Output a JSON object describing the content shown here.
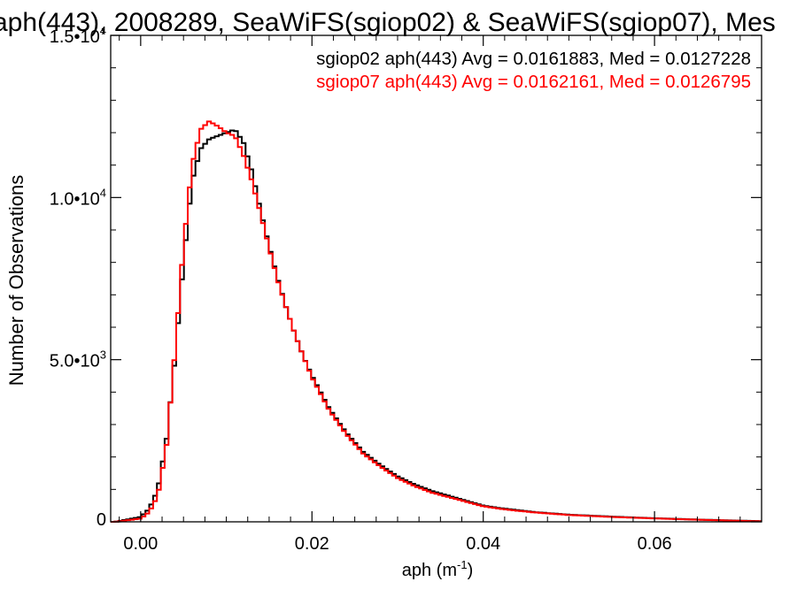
{
  "chart_data": {
    "type": "line",
    "title": "aph(443), 2008289, SeaWiFS(sgiop02) & SeaWiFS(sgiop07), Mes",
    "xlabel": "aph (m",
    "xlabel_sup": "-1",
    "xlabel_end": ")",
    "ylabel": "Number of Observations",
    "xlim": [
      -0.0035,
      0.0725
    ],
    "ylim": [
      0,
      15000
    ],
    "grid": false,
    "legend_position": "top-right",
    "x_ticks": [
      {
        "value": 0.0,
        "label": "0.00"
      },
      {
        "value": 0.02,
        "label": "0.02"
      },
      {
        "value": 0.04,
        "label": "0.04"
      },
      {
        "value": 0.06,
        "label": "0.06"
      }
    ],
    "y_ticks": [
      {
        "value": 0,
        "base": "0",
        "exp": ""
      },
      {
        "value": 5000,
        "base": "5.0•10",
        "exp": "3"
      },
      {
        "value": 10000,
        "base": "1.0•10",
        "exp": "4"
      },
      {
        "value": 15000,
        "base": "1.5•10",
        "exp": "4"
      }
    ],
    "series": [
      {
        "name": "sgiop02 aph(443) Avg = 0.0161883, Med = 0.0127228",
        "color": "#000000",
        "x": [
          -0.003,
          0.0,
          0.001,
          0.002,
          0.003,
          0.004,
          0.005,
          0.006,
          0.007,
          0.008,
          0.009,
          0.01,
          0.011,
          0.012,
          0.013,
          0.014,
          0.015,
          0.016,
          0.017,
          0.018,
          0.019,
          0.02,
          0.022,
          0.024,
          0.026,
          0.028,
          0.03,
          0.032,
          0.034,
          0.036,
          0.038,
          0.04,
          0.042,
          0.044,
          0.046,
          0.048,
          0.05,
          0.055,
          0.06,
          0.065,
          0.07,
          0.0725
        ],
        "y": [
          0,
          150,
          400,
          1000,
          2500,
          5000,
          8000,
          10500,
          11500,
          11800,
          11900,
          12000,
          12100,
          11700,
          10800,
          9600,
          8500,
          7500,
          6600,
          5800,
          5100,
          4500,
          3500,
          2750,
          2150,
          1750,
          1400,
          1150,
          950,
          800,
          650,
          500,
          420,
          360,
          300,
          260,
          220,
          160,
          110,
          70,
          35,
          20
        ]
      },
      {
        "name": "sgiop07 aph(443) Avg = 0.0162161, Med = 0.0126795",
        "color": "#ff0000",
        "x": [
          -0.003,
          0.0,
          0.001,
          0.002,
          0.003,
          0.004,
          0.005,
          0.006,
          0.007,
          0.008,
          0.009,
          0.01,
          0.011,
          0.012,
          0.013,
          0.014,
          0.015,
          0.016,
          0.017,
          0.018,
          0.019,
          0.02,
          0.022,
          0.024,
          0.026,
          0.028,
          0.03,
          0.032,
          0.034,
          0.036,
          0.038,
          0.04,
          0.042,
          0.044,
          0.046,
          0.048,
          0.05,
          0.055,
          0.06,
          0.065,
          0.07,
          0.0725
        ],
        "y": [
          0,
          100,
          300,
          800,
          2300,
          5200,
          8500,
          11000,
          12100,
          12350,
          12200,
          12000,
          11900,
          11300,
          10500,
          9500,
          8450,
          7450,
          6600,
          5800,
          5100,
          4450,
          3450,
          2700,
          2100,
          1700,
          1350,
          1100,
          900,
          760,
          620,
          480,
          400,
          340,
          290,
          250,
          210,
          150,
          105,
          65,
          30,
          15
        ]
      }
    ]
  }
}
